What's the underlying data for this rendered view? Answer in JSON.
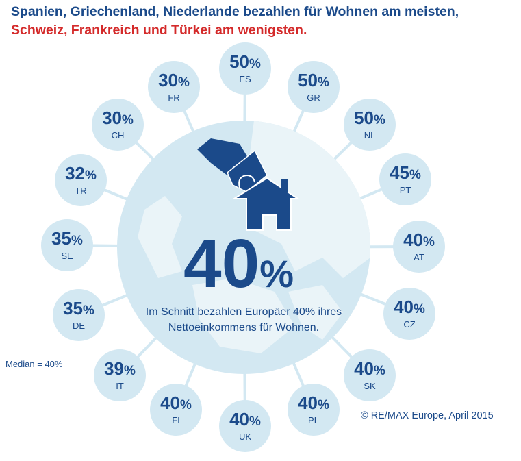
{
  "title": {
    "line1": "Spanien, Griechenland, Niederlande bezahlen für Wohnen am meisten,",
    "line2": "Schweiz, Frankreich und Türkei am wenigsten."
  },
  "center": {
    "value": "40",
    "unit": "%",
    "caption_line1": "Im Schnitt bezahlen Europäer 40% ihres",
    "caption_line2": "Nettoeinkommens für Wohnen."
  },
  "countries": [
    {
      "code": "ES",
      "value": "50",
      "unit": "%"
    },
    {
      "code": "GR",
      "value": "50",
      "unit": "%"
    },
    {
      "code": "NL",
      "value": "50",
      "unit": "%"
    },
    {
      "code": "PT",
      "value": "45",
      "unit": "%"
    },
    {
      "code": "AT",
      "value": "40",
      "unit": "%"
    },
    {
      "code": "CZ",
      "value": "40",
      "unit": "%"
    },
    {
      "code": "SK",
      "value": "40",
      "unit": "%"
    },
    {
      "code": "PL",
      "value": "40",
      "unit": "%"
    },
    {
      "code": "UK",
      "value": "40",
      "unit": "%"
    },
    {
      "code": "FI",
      "value": "40",
      "unit": "%"
    },
    {
      "code": "IT",
      "value": "39",
      "unit": "%"
    },
    {
      "code": "DE",
      "value": "35",
      "unit": "%"
    },
    {
      "code": "SE",
      "value": "35",
      "unit": "%"
    },
    {
      "code": "TR",
      "value": "32",
      "unit": "%"
    },
    {
      "code": "CH",
      "value": "30",
      "unit": "%"
    },
    {
      "code": "FR",
      "value": "30",
      "unit": "%"
    }
  ],
  "median": "Median = 40%",
  "copyright": "© RE/MAX Europe, April 2015",
  "colors": {
    "primary": "#1b4a8a",
    "accent": "#d42a2a",
    "bubble": "#d3e8f2",
    "map": "#eaf4f8"
  }
}
